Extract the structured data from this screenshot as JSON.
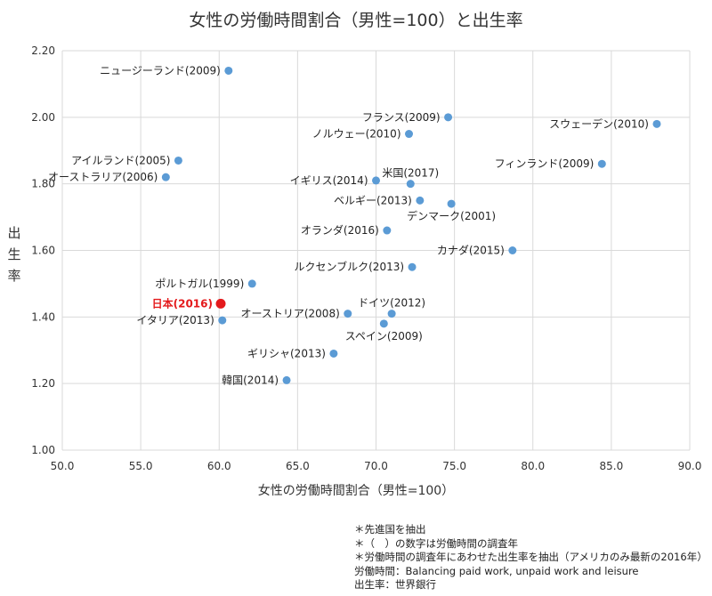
{
  "chart_data": {
    "type": "scatter",
    "title": "女性の労働時間割合（男性=100）と出生率",
    "xlabel": "女性の労働時間割合（男性=100）",
    "ylabel": "出生率",
    "xlim": [
      50,
      90
    ],
    "ylim": [
      1.0,
      2.2
    ],
    "x_ticks": [
      "50.0",
      "55.0",
      "60.0",
      "65.0",
      "70.0",
      "75.0",
      "80.0",
      "85.0",
      "90.0"
    ],
    "y_ticks": [
      "1.00",
      "1.20",
      "1.40",
      "1.60",
      "1.80",
      "2.00",
      "2.20"
    ],
    "grid": true,
    "colors": {
      "point": "#5b9bd5",
      "highlight": "#e41a1c",
      "grid": "#d9d9d9"
    },
    "points": [
      {
        "label": "ニュージーランド(2009)",
        "x": 60.6,
        "y": 2.14,
        "label_side": "left"
      },
      {
        "label": "フランス(2009)",
        "x": 74.6,
        "y": 2.0,
        "label_side": "left"
      },
      {
        "label": "スウェーデン(2010)",
        "x": 87.9,
        "y": 1.98,
        "label_side": "left"
      },
      {
        "label": "ノルウェー(2010)",
        "x": 72.1,
        "y": 1.95,
        "label_side": "left"
      },
      {
        "label": "アイルランド(2005)",
        "x": 57.4,
        "y": 1.87,
        "label_side": "left"
      },
      {
        "label": "フィンランド(2009)",
        "x": 84.4,
        "y": 1.86,
        "label_side": "left"
      },
      {
        "label": "オーストラリア(2006)",
        "x": 56.6,
        "y": 1.82,
        "label_side": "left"
      },
      {
        "label": "イギリス(2014)",
        "x": 70.0,
        "y": 1.81,
        "label_side": "left"
      },
      {
        "label": "米国(2017)",
        "x": 72.2,
        "y": 1.8,
        "label_side": "above"
      },
      {
        "label": "ベルギー(2013)",
        "x": 72.8,
        "y": 1.75,
        "label_side": "left"
      },
      {
        "label": "デンマーク(2001)",
        "x": 74.8,
        "y": 1.74,
        "label_side": "below"
      },
      {
        "label": "オランダ(2016)",
        "x": 70.7,
        "y": 1.66,
        "label_side": "left"
      },
      {
        "label": "カナダ(2015)",
        "x": 78.7,
        "y": 1.6,
        "label_side": "left"
      },
      {
        "label": "ルクセンブルク(2013)",
        "x": 72.3,
        "y": 1.55,
        "label_side": "left"
      },
      {
        "label": "ポルトガル(1999)",
        "x": 62.1,
        "y": 1.5,
        "label_side": "left"
      },
      {
        "label": "日本(2016)",
        "x": 60.1,
        "y": 1.44,
        "label_side": "left",
        "highlight": true
      },
      {
        "label": "ドイツ(2012)",
        "x": 71.0,
        "y": 1.41,
        "label_side": "above"
      },
      {
        "label": "オーストリア(2008)",
        "x": 68.2,
        "y": 1.41,
        "label_side": "left"
      },
      {
        "label": "イタリア(2013)",
        "x": 60.2,
        "y": 1.39,
        "label_side": "left"
      },
      {
        "label": "スペイン(2009)",
        "x": 70.5,
        "y": 1.38,
        "label_side": "below"
      },
      {
        "label": "ギリシャ(2013)",
        "x": 67.3,
        "y": 1.29,
        "label_side": "left"
      },
      {
        "label": "韓国(2014)",
        "x": 64.3,
        "y": 1.21,
        "label_side": "left"
      }
    ]
  },
  "notes": [
    "＊先進国を抽出",
    "＊（　）の数字は労働時間の調査年",
    "＊労働時間の調査年にあわせた出生率を抽出（アメリカのみ最新の2016年）",
    "労働時間：Balancing paid work, unpaid work and leisure",
    "出生率：世界銀行"
  ]
}
